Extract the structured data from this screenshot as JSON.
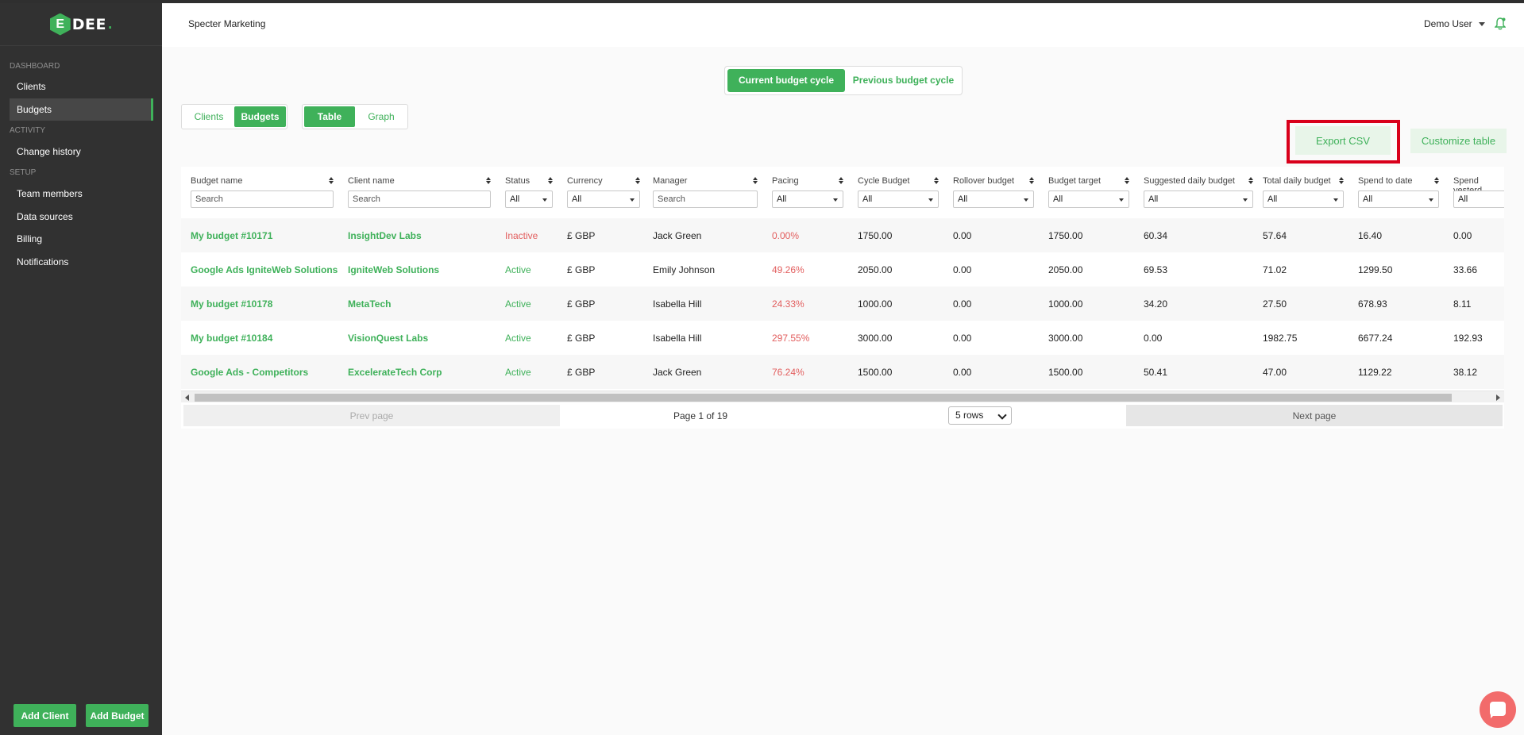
{
  "app": {
    "logo_letter": "E",
    "logo_text": "DEE",
    "logo_dot": ".",
    "brand_color": "#3fb15a"
  },
  "header": {
    "company": "Specter Marketing",
    "user": "Demo User",
    "bell_icon": "bell-icon"
  },
  "sidebar": {
    "sections": {
      "dashboard": "DASHBOARD",
      "activity": "ACTIVITY",
      "setup": "SETUP"
    },
    "items": [
      {
        "label": "Clients"
      },
      {
        "label": "Budgets",
        "active": true
      },
      {
        "label": "Change history"
      },
      {
        "label": "Team members"
      },
      {
        "label": "Data sources"
      },
      {
        "label": "Billing"
      },
      {
        "label": "Notifications"
      }
    ],
    "add_client": "Add Client",
    "add_budget": "Add Budget"
  },
  "cycle": {
    "current": "Current budget cycle",
    "previous": "Previous budget cycle",
    "selected": "current"
  },
  "view_toggle": {
    "clients": "Clients",
    "budgets": "Budgets",
    "table": "Table",
    "graph": "Graph"
  },
  "actions": {
    "export_csv": "Export CSV",
    "customize_table": "Customize table"
  },
  "table": {
    "columns": [
      {
        "label": "Budget name",
        "filter": "Search",
        "filter_type": "search"
      },
      {
        "label": "Client name",
        "filter": "Search",
        "filter_type": "search"
      },
      {
        "label": "Status",
        "filter": "All",
        "filter_type": "select"
      },
      {
        "label": "Currency",
        "filter": "All",
        "filter_type": "select"
      },
      {
        "label": "Manager",
        "filter": "Search",
        "filter_type": "search"
      },
      {
        "label": "Pacing",
        "filter": "All",
        "filter_type": "select"
      },
      {
        "label": "Cycle Budget",
        "filter": "All",
        "filter_type": "select"
      },
      {
        "label": "Rollover budget",
        "filter": "All",
        "filter_type": "select"
      },
      {
        "label": "Budget target",
        "filter": "All",
        "filter_type": "select"
      },
      {
        "label": "Suggested daily budget",
        "filter": "All",
        "filter_type": "select"
      },
      {
        "label": "Total daily budget",
        "filter": "All",
        "filter_type": "select"
      },
      {
        "label": "Spend to date",
        "filter": "All",
        "filter_type": "select"
      },
      {
        "label": "Spend yesterd",
        "filter": "All",
        "filter_type": "select"
      }
    ],
    "rows": [
      [
        "My budget #10171",
        "InsightDev Labs",
        "Inactive",
        "£ GBP",
        "Jack Green",
        "0.00%",
        "1750.00",
        "0.00",
        "1750.00",
        "60.34",
        "57.64",
        "16.40",
        "0.00"
      ],
      [
        "Google Ads IgniteWeb Solutions",
        "IgniteWeb Solutions",
        "Active",
        "£ GBP",
        "Emily Johnson",
        "49.26%",
        "2050.00",
        "0.00",
        "2050.00",
        "69.53",
        "71.02",
        "1299.50",
        "33.66"
      ],
      [
        "My budget #10178",
        "MetaTech",
        "Active",
        "£ GBP",
        "Isabella Hill",
        "24.33%",
        "1000.00",
        "0.00",
        "1000.00",
        "34.20",
        "27.50",
        "678.93",
        "8.11"
      ],
      [
        "My budget #10184",
        "VisionQuest Labs",
        "Active",
        "£ GBP",
        "Isabella Hill",
        "297.55%",
        "3000.00",
        "0.00",
        "3000.00",
        "0.00",
        "1982.75",
        "6677.24",
        "192.93"
      ],
      [
        "Google Ads - Competitors",
        "ExcelerateTech Corp",
        "Active",
        "£ GBP",
        "Jack Green",
        "76.24%",
        "1500.00",
        "0.00",
        "1500.00",
        "50.41",
        "47.00",
        "1129.22",
        "38.12"
      ]
    ]
  },
  "pagination": {
    "prev": "Prev page",
    "info": "Page 1 of 19",
    "rows": "5 rows",
    "next": "Next page"
  }
}
